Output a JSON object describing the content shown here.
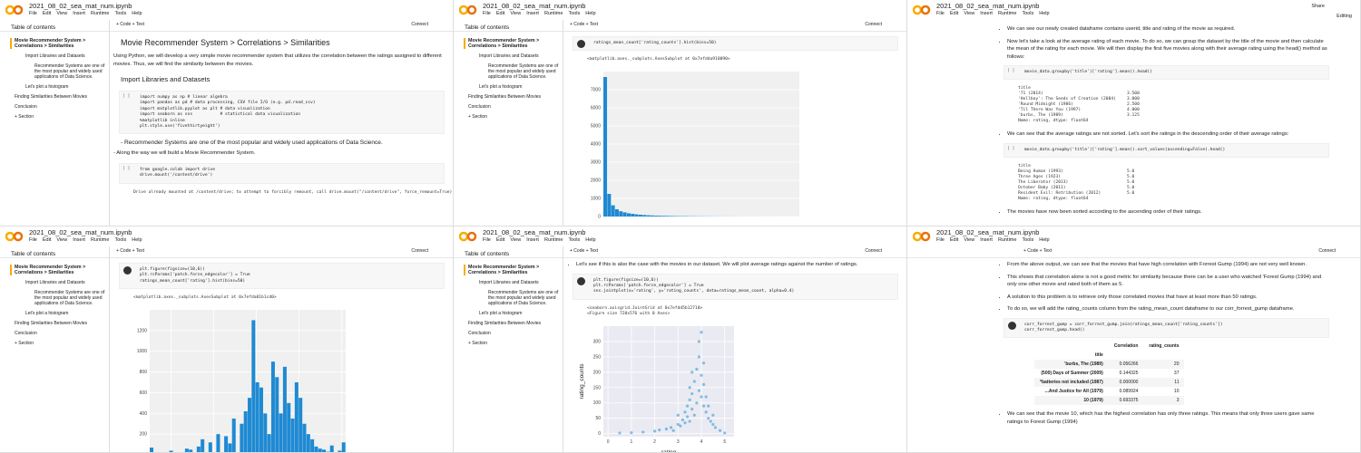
{
  "header": {
    "file_name": "2021_08_02_sea_mat_num.ipynb",
    "menu": [
      "File",
      "Edit",
      "View",
      "Insert",
      "Runtime",
      "Tools",
      "Help"
    ],
    "add_code": "+ Code",
    "add_text": "+ Text",
    "connect": "Connect",
    "share": "Share",
    "editing": "Editing"
  },
  "toc": {
    "title": "Table of contents",
    "items": [
      {
        "text": "Movie Recommender System > Correlations > Similarities",
        "level": 0
      },
      {
        "text": "Import Libraries and Datasets",
        "level": 1
      },
      {
        "text": "Recommender Systems are one of the most popular and widely used applications of Data Science.",
        "level": 2
      },
      {
        "text": "Let's plot a histogram",
        "level": 1
      },
      {
        "text": "Finding Similarities Between Movies",
        "level": 0
      },
      {
        "text": "Conclusion",
        "level": 0
      }
    ],
    "section": "+ Section"
  },
  "tiles": [
    {
      "sidebar": true,
      "toolbar": true,
      "editing": false,
      "content": [
        {
          "kind": "h1",
          "text": "Movie Recommender System > Correlations > Similarities"
        },
        {
          "kind": "p",
          "text": "Using Python, we will develop a very simple movie recommender system that utilizes the correlation between the ratings assigned to different movies. Thus, we will find the similarity between the movies."
        },
        {
          "kind": "h2",
          "text": "Import Libraries and Datasets"
        },
        {
          "kind": "code",
          "lines": [
            "import numpy as np # linear algebra",
            "import pandas as pd # data processing, CSV file I/O (e.g. pd.read_csv)",
            "import matplotlib.pyplot as plt # data visualization",
            "import seaborn as sns           # statistical data visualization",
            "%matplotlib inline",
            "plt.style.use('fivethirtyeight')"
          ]
        },
        {
          "kind": "h3",
          "text": "- Recommender Systems are one of the most popular and widely used applications of Data Science."
        },
        {
          "kind": "p",
          "text": "- Along the way we will build a Movie Recommender System."
        },
        {
          "kind": "code",
          "lines": [
            "from google.colab import drive",
            "drive.mount('/content/drive')"
          ]
        },
        {
          "kind": "out",
          "lines": [
            "Drive already mounted at /content/drive; to attempt to forcibly remount, call drive.mount(\"/content/drive\", force_remount=True)."
          ]
        }
      ]
    },
    {
      "sidebar": true,
      "toolbar": true,
      "editing": false,
      "content": [
        {
          "kind": "code",
          "run": true,
          "lines": [
            "ratings_mean_count['rating_counts'].hist(bins=50)"
          ]
        },
        {
          "kind": "out",
          "lines": [
            "<matplotlib.axes._subplots.AxesSubplot at 0x7efdda910090>"
          ]
        },
        {
          "kind": "plot",
          "chart": {
            "type": "bar",
            "color": "#1f8ad2",
            "ylim": [
              0,
              8000
            ],
            "yticks": [
              0,
              1000,
              2000,
              3000,
              4000,
              5000,
              6000,
              7000
            ],
            "values": [
              7700,
              1250,
              620,
              400,
              290,
              230,
              180,
              150,
              120,
              100,
              85,
              70,
              60,
              50,
              45,
              40,
              35,
              30,
              25,
              22,
              20,
              18,
              15,
              13,
              12,
              10,
              9,
              8,
              7,
              6,
              5,
              5,
              4,
              4,
              3,
              3,
              2,
              2,
              2,
              1,
              1,
              1,
              1,
              1,
              1,
              0,
              0,
              1,
              0,
              1
            ]
          }
        }
      ]
    },
    {
      "sidebar": false,
      "toolbar": false,
      "editing": true,
      "content": [
        {
          "kind": "bullet",
          "text": "We can see our newly created dataframe contains userid, title and rating of the movie as required."
        },
        {
          "kind": "bullet",
          "text": "Now let's take a look at the average rating of each movie. To do so, we can group the dataset by the title of the movie and then calculate the mean of the rating for each movie. We will then display the first five movies along with their average rating using the head() method as follows:"
        },
        {
          "kind": "code",
          "lines": [
            "movie_data.groupby('title')['rating'].mean().head()"
          ]
        },
        {
          "kind": "series",
          "head": "title",
          "rows": [
            [
              "'71 (2014)",
              "3.500"
            ],
            [
              "'Hellboy': The Seeds of Creation (2004)",
              "3.000"
            ],
            [
              "'Round Midnight (1986)",
              "2.500"
            ],
            [
              "'Til There Was You (1997)",
              "4.000"
            ],
            [
              "'burbs, The (1989)",
              "3.125"
            ]
          ],
          "foot": "Name: rating, dtype: float64"
        },
        {
          "kind": "bullet",
          "text": "We can see that the average ratings are not sorted. Let's sort the ratings in the descending order of their average ratings:"
        },
        {
          "kind": "code",
          "lines": [
            "movie_data.groupby('title')['rating'].mean().sort_values(ascending=False).head()"
          ]
        },
        {
          "kind": "series",
          "head": "title",
          "rows": [
            [
              "Being Human (1993)",
              "5.0"
            ],
            [
              "Three Ages (1923)",
              "5.0"
            ],
            [
              "The Liberator (2013)",
              "5.0"
            ],
            [
              "October Baby (2011)",
              "5.0"
            ],
            [
              "Resident Evil: Retribution (2012)",
              "5.0"
            ]
          ],
          "foot": "Name: rating, dtype: float64"
        },
        {
          "kind": "bullet",
          "text": "The movies have now been sorted according to the ascending order of their ratings."
        }
      ]
    },
    {
      "sidebar": true,
      "toolbar": true,
      "editing": false,
      "content": [
        {
          "kind": "code",
          "run": true,
          "lines": [
            "plt.figure(figsize=(10,6))",
            "plt.rcParams['patch.force_edgecolor'] = True",
            "ratings_mean_count['rating'].hist(bins=50)"
          ]
        },
        {
          "kind": "out",
          "lines": [
            "<matplotlib.axes._subplots.AxesSubplot at 0x7efda01b1cd0>"
          ]
        },
        {
          "kind": "plot",
          "chart": {
            "type": "bar",
            "color": "#1f8ad2",
            "xlim": [
              0.5,
              5.1
            ],
            "xticks": [
              1,
              2,
              3,
              4,
              5
            ],
            "ylim": [
              0,
              1400
            ],
            "yticks": [
              0,
              200,
              400,
              600,
              800,
              1000,
              1200
            ],
            "values": [
              70,
              0,
              0,
              0,
              0,
              40,
              0,
              0,
              0,
              60,
              50,
              0,
              80,
              150,
              0,
              120,
              0,
              200,
              0,
              180,
              110,
              350,
              0,
              300,
              420,
              550,
              1300,
              700,
              650,
              400,
              200,
              900,
              750,
              400,
              850,
              500,
              350,
              700,
              550,
              300,
              200,
              150,
              80,
              60,
              50,
              30,
              90,
              20,
              40,
              120
            ]
          }
        }
      ]
    },
    {
      "sidebar": true,
      "toolbar": true,
      "editing": false,
      "content": [
        {
          "kind": "bullet",
          "text": "Let's see if this is also the case with the movies in our dataset. We will plot average ratings against the number of ratings."
        },
        {
          "kind": "code",
          "run": true,
          "lines": [
            "plt.figure(figsize=(10,6))",
            "plt.rcParams['patch.force_edgecolor'] = True",
            "sns.jointplot(x='rating', y='rating_counts', data=ratings_mean_count, alpha=0.4)"
          ]
        },
        {
          "kind": "out",
          "lines": [
            "<seaborn.axisgrid.JointGrid at 0x7efdd5b12710>",
            "<Figure size 720x576 with 0 Axes>"
          ]
        },
        {
          "kind": "plot",
          "chart": {
            "type": "scatter",
            "color": "#3b9bd6",
            "xlabel": "rating",
            "ylabel": "rating_counts",
            "xlim": [
              -0.2,
              5.4
            ],
            "ylim": [
              -10,
              350
            ],
            "xticks": [
              0,
              1,
              2,
              3,
              4,
              5
            ],
            "yticks": [
              0,
              50,
              100,
              150,
              200,
              250,
              300
            ],
            "x": [
              0.5,
              1,
              1.5,
              2,
              2.2,
              2.5,
              2.7,
              2.8,
              3,
              3,
              3.1,
              3.2,
              3.3,
              3.3,
              3.4,
              3.5,
              3.5,
              3.5,
              3.6,
              3.6,
              3.7,
              3.7,
              3.8,
              3.8,
              3.9,
              3.9,
              4,
              4,
              4,
              4.1,
              4.1,
              4.2,
              4.2,
              4.3,
              4.3,
              4.4,
              4.5,
              4.5,
              4.6,
              4.8,
              5,
              3.4,
              3.9,
              4.1,
              3.6
            ],
            "y": [
              2,
              3,
              5,
              8,
              12,
              15,
              20,
              10,
              30,
              60,
              25,
              45,
              70,
              35,
              90,
              110,
              40,
              150,
              80,
              130,
              60,
              170,
              100,
              210,
              140,
              250,
              120,
              190,
              330,
              90,
              160,
              70,
              120,
              50,
              90,
              40,
              30,
              60,
              20,
              10,
              2,
              55,
              300,
              230,
              200
            ]
          }
        }
      ]
    },
    {
      "sidebar": false,
      "toolbar": true,
      "editing": false,
      "content": [
        {
          "kind": "bullet",
          "text": "From the above output, we can see that the movies that have high correlation with Forrest Gump (1994) are not very well known."
        },
        {
          "kind": "bullet",
          "text": "This shows that correlation alone is not a good metric for similarity because there can be a user who watched 'Forest Gump (1994) and only one other movie and rated both of them as 5."
        },
        {
          "kind": "bullet",
          "text": "A solution to this problem is to retrieve only those correlated movies that have at least more than 50 ratings."
        },
        {
          "kind": "bullet",
          "text": "To do so, we will add the rating_counts column from the rating_mean_count dataframe to our corr_forrest_gump dataframe."
        },
        {
          "kind": "code",
          "run": true,
          "lines": [
            "corr_forrest_gump = corr_forrest_gump.join(ratings_mean_count['rating_counts'])",
            "corr_forrest_gump.head()"
          ]
        },
        {
          "kind": "table",
          "columns": [
            "Correlation",
            "rating_counts"
          ],
          "index": "title",
          "rows": [
            [
              "'burbs, The (1989)",
              "0.056266",
              "20"
            ],
            [
              "(500) Days of Summer (2009)",
              "0.144325",
              "37"
            ],
            [
              "*batteries not included (1987)",
              "0.000000",
              "11"
            ],
            [
              "...And Justice for All (1979)",
              "0.089924",
              "10"
            ],
            [
              "10 (1979)",
              "0.693375",
              "3"
            ]
          ]
        },
        {
          "kind": "bullet",
          "text": "We can see that the movie 10, which has the highest correlation has only three ratings. This means that only three users gave same ratings to Forest Gump (1994)"
        }
      ]
    }
  ]
}
